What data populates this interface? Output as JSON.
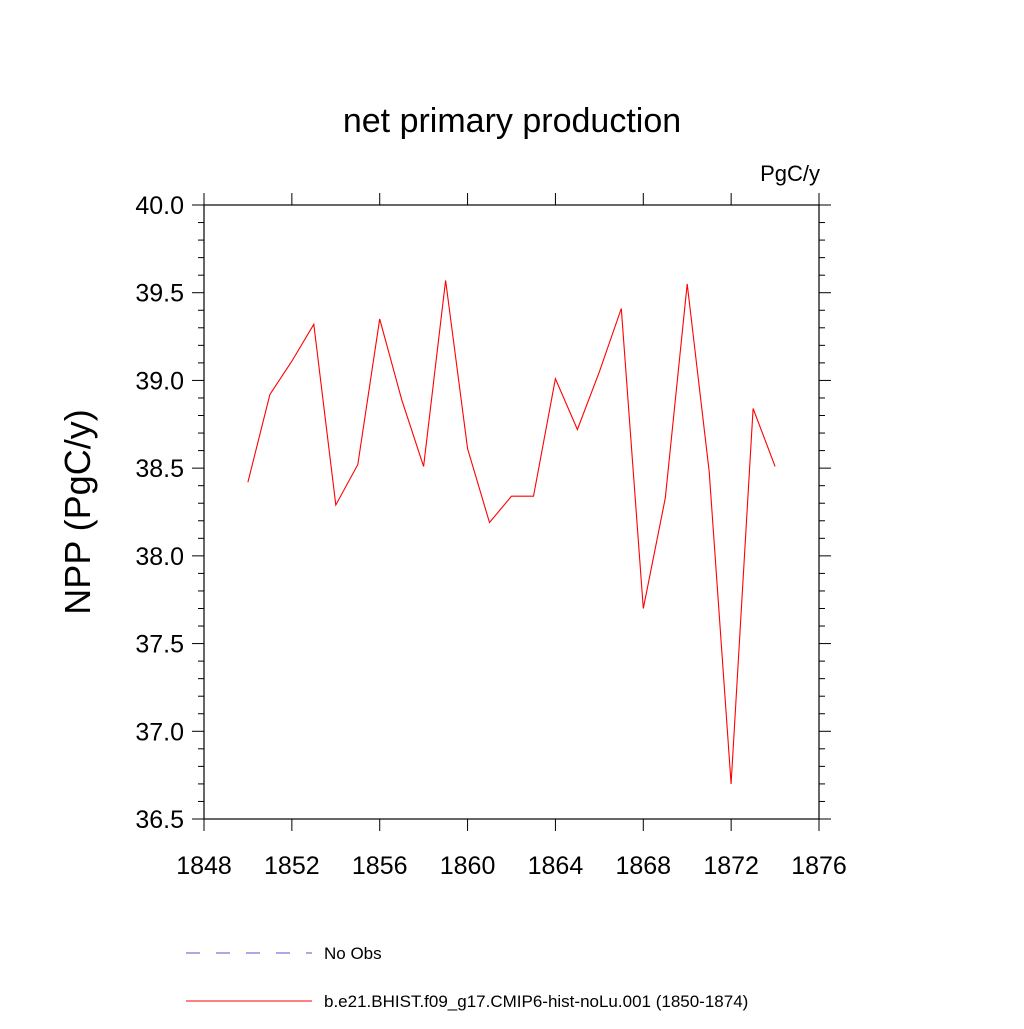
{
  "chart_data": {
    "type": "line",
    "title": "net primary production",
    "units": "PgC/y",
    "ylabel": "NPP  (PgC/y)",
    "xlabel": "",
    "xlim": [
      1848,
      1876
    ],
    "ylim": [
      36.5,
      40.0
    ],
    "x_ticks": [
      "1848",
      "1852",
      "1856",
      "1860",
      "1864",
      "1868",
      "1872",
      "1876"
    ],
    "y_ticks": [
      "36.5",
      "37.0",
      "37.5",
      "38.0",
      "38.5",
      "39.0",
      "39.5",
      "40.0"
    ],
    "grid": false,
    "legend_position": "bottom",
    "series": [
      {
        "name": "No Obs",
        "color": "#5a4fcf",
        "dash": "dashed",
        "x": [],
        "y": []
      },
      {
        "name": "b.e21.BHIST.f09_g17.CMIP6-hist-noLu.001 (1850-1874)",
        "color": "#ff0000",
        "dash": "solid",
        "x": [
          1850,
          1851,
          1852,
          1853,
          1854,
          1855,
          1856,
          1857,
          1858,
          1859,
          1860,
          1861,
          1862,
          1863,
          1864,
          1865,
          1866,
          1867,
          1868,
          1869,
          1870,
          1871,
          1872,
          1873,
          1874
        ],
        "y": [
          38.42,
          38.92,
          39.11,
          39.32,
          38.29,
          38.52,
          39.35,
          38.89,
          38.51,
          39.57,
          38.61,
          38.19,
          38.34,
          38.34,
          39.01,
          38.72,
          39.05,
          39.41,
          37.7,
          38.33,
          39.55,
          38.48,
          36.7,
          38.84,
          38.51
        ]
      }
    ]
  }
}
